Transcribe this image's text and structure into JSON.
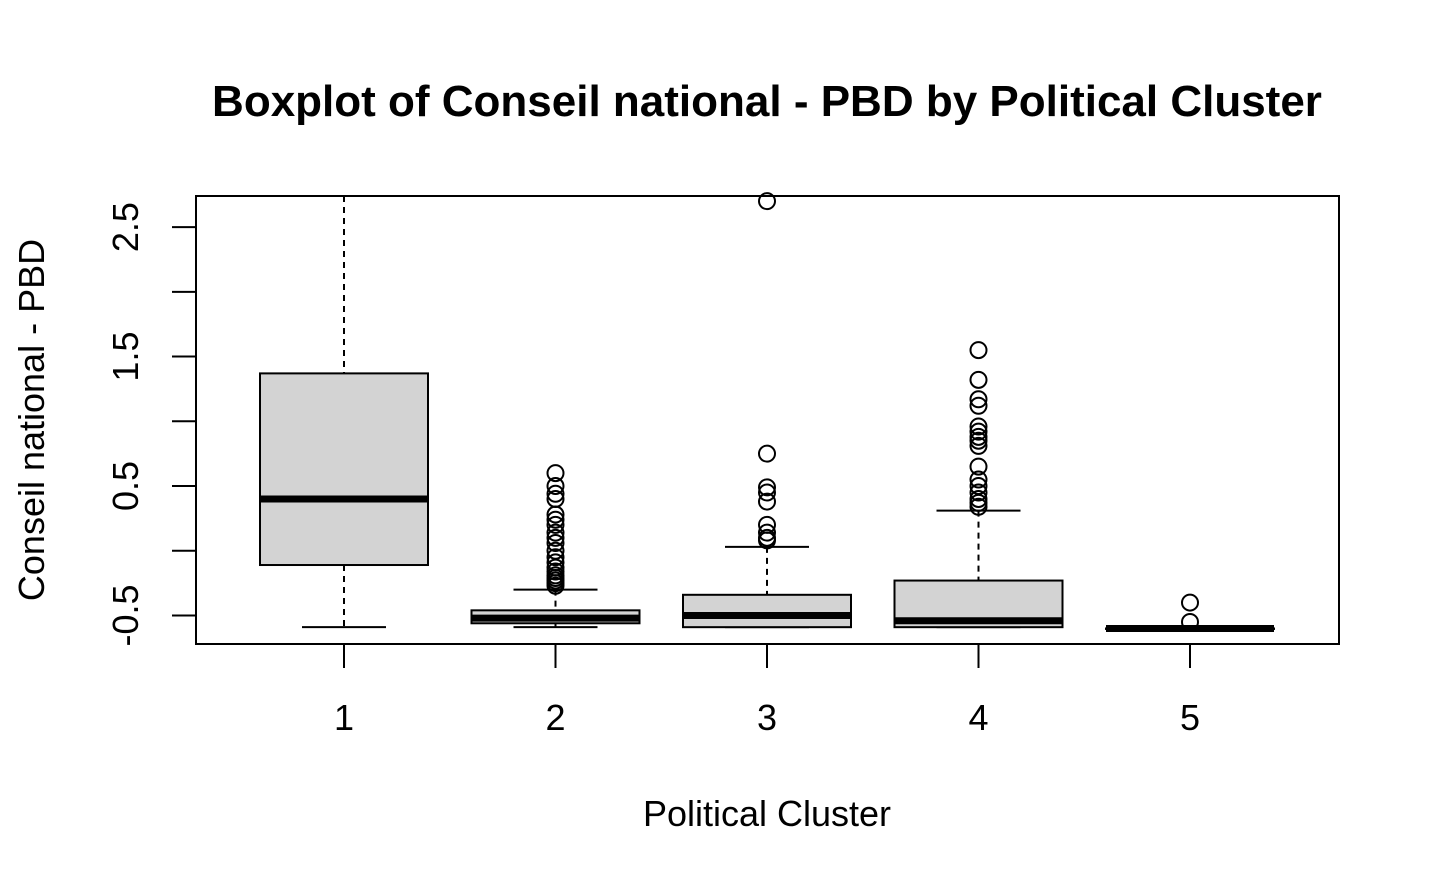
{
  "chart_data": {
    "type": "boxplot",
    "title": "Boxplot of Conseil national - PBD by Political Cluster",
    "xlabel": "Political Cluster",
    "ylabel": "Conseil national - PBD",
    "categories": [
      "1",
      "2",
      "3",
      "4",
      "5"
    ],
    "yticks": [
      -0.5,
      0.0,
      0.5,
      1.0,
      1.5,
      2.0,
      2.5
    ],
    "ytick_labels": [
      "-0.5",
      "",
      "0.5",
      "",
      "1.5",
      "",
      "2.5"
    ],
    "ylim": [
      -0.72,
      2.74
    ],
    "grid": false,
    "box_fill": "#d3d3d3",
    "boxes": [
      {
        "category": "1",
        "whisker_low": -0.59,
        "q1": -0.11,
        "median": 0.4,
        "q3": 1.37,
        "whisker_high": 2.74,
        "outliers": []
      },
      {
        "category": "2",
        "whisker_low": -0.59,
        "q1": -0.56,
        "median": -0.52,
        "q3": -0.46,
        "whisker_high": -0.3,
        "outliers": [
          -0.27,
          -0.25,
          -0.23,
          -0.21,
          -0.19,
          -0.16,
          -0.13,
          -0.09,
          -0.05,
          0.0,
          0.06,
          0.1,
          0.14,
          0.2,
          0.24,
          0.28,
          0.4,
          0.44,
          0.5,
          0.6
        ]
      },
      {
        "category": "3",
        "whisker_low": -0.59,
        "q1": -0.59,
        "median": -0.5,
        "q3": -0.34,
        "whisker_high": 0.03,
        "outliers": [
          0.08,
          0.1,
          0.14,
          0.2,
          0.38,
          0.45,
          0.49,
          0.75,
          2.7
        ]
      },
      {
        "category": "4",
        "whisker_low": -0.59,
        "q1": -0.59,
        "median": -0.54,
        "q3": -0.23,
        "whisker_high": 0.31,
        "outliers": [
          0.34,
          0.37,
          0.4,
          0.45,
          0.5,
          0.55,
          0.65,
          0.81,
          0.85,
          0.88,
          0.92,
          0.96,
          1.12,
          1.17,
          1.32,
          1.55
        ]
      },
      {
        "category": "5",
        "whisker_low": -0.6,
        "q1": -0.6,
        "median": -0.6,
        "q3": -0.6,
        "whisker_high": -0.6,
        "outliers": [
          -0.55,
          -0.4
        ]
      }
    ]
  }
}
